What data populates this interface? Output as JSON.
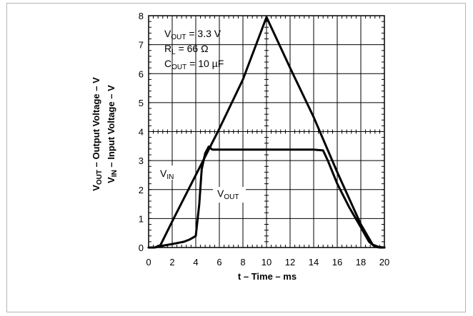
{
  "chart_data": {
    "type": "line",
    "xlabel": "t – Time – ms",
    "ylabel_lines": [
      "VOUT – Output Voltage – V",
      "VIN – Input Voltage – V"
    ],
    "xlim": [
      0,
      20
    ],
    "ylim": [
      0,
      8
    ],
    "x_ticks": [
      0,
      2,
      4,
      6,
      8,
      10,
      12,
      14,
      16,
      18,
      20
    ],
    "y_ticks": [
      0,
      1,
      2,
      3,
      4,
      5,
      6,
      7,
      8
    ],
    "grid": true,
    "annotations": [
      "VOUT = 3.3 V",
      "RL = 66 Ω",
      "COUT = 10 µF"
    ],
    "series": [
      {
        "name": "VIN",
        "x": [
          0,
          0.5,
          1,
          2,
          4,
          6,
          8,
          10,
          12,
          14,
          16,
          18,
          19,
          19.5,
          20
        ],
        "y": [
          0,
          0,
          0.08,
          0.9,
          2.5,
          4.1,
          5.8,
          7.95,
          6.2,
          4.5,
          2.6,
          0.8,
          0.1,
          0.02,
          0
        ]
      },
      {
        "name": "VOUT",
        "x": [
          0,
          0.5,
          1,
          2,
          3,
          3.5,
          4,
          4.3,
          4.5,
          4.8,
          5.1,
          5.4,
          6,
          8,
          10,
          12,
          14,
          14.8,
          15.2,
          16,
          17,
          18,
          18.7,
          19.2,
          19.6,
          20
        ],
        "y": [
          0,
          0,
          0.05,
          0.12,
          0.2,
          0.28,
          0.4,
          1.5,
          2.7,
          3.25,
          3.48,
          3.38,
          3.38,
          3.38,
          3.38,
          3.38,
          3.38,
          3.35,
          3.0,
          2.2,
          1.4,
          0.7,
          0.2,
          0.03,
          0,
          0
        ]
      }
    ]
  }
}
